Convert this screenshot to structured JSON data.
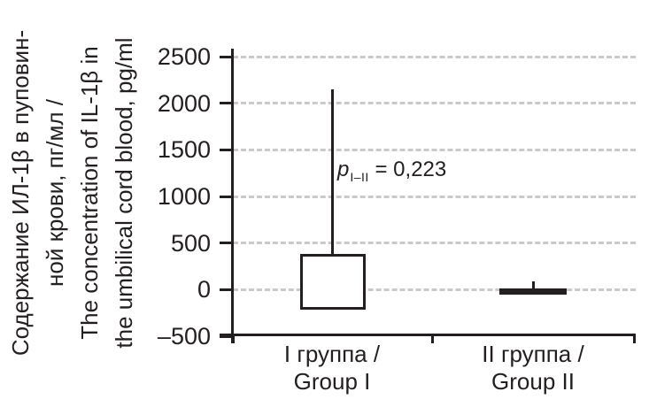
{
  "figure": {
    "background": "#ffffff",
    "ink_color": "#231f20",
    "grid_color": "#c9c9c9"
  },
  "chart_data": {
    "type": "boxplot",
    "title": "",
    "ylabel_lines": [
      "Содержание ИЛ-1β в пуповин-",
      "ной крови, пг/мл /",
      "The concentration of IL-1β in",
      "the umbilical cord blood, pg/ml"
    ],
    "ylim": [
      -500,
      2500
    ],
    "yticks": [
      2500,
      2000,
      1500,
      1000,
      500,
      0,
      -500
    ],
    "ytick_labels": [
      "2500",
      "2000",
      "1500",
      "1000",
      "500",
      "0",
      "–500"
    ],
    "grid": "horizontal dashed gridlines at each y tick",
    "legend": "none",
    "categories": [
      {
        "line1": "I группа /",
        "line2": "Group I"
      },
      {
        "line1": "II группа /",
        "line2": "Group II"
      }
    ],
    "series": [
      {
        "name": "I группа / Group I",
        "q1": -220,
        "median": null,
        "q3": 380,
        "whisker_low": null,
        "whisker_high": 2150
      },
      {
        "name": "II группа / Group II",
        "q1": -40,
        "median": null,
        "q3": 15,
        "whisker_low": null,
        "whisker_high": 90
      }
    ],
    "annotation": {
      "p_symbol": "p",
      "subscript": "I–II",
      "rest": " = 0,223",
      "full_text": "pI–II = 0,223"
    }
  }
}
